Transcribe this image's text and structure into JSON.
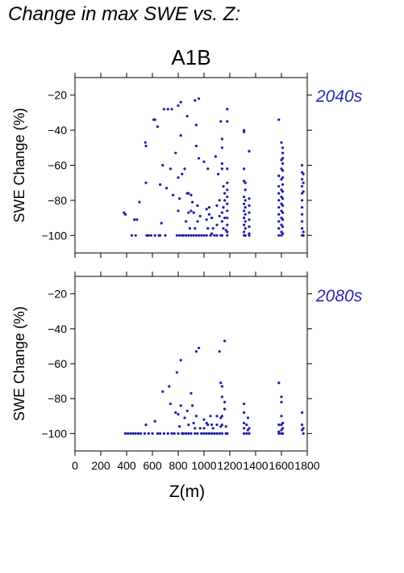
{
  "figure": {
    "title": "Change in max SWE vs. Z:",
    "scenario": "A1B",
    "point_color": "#1c1ca8",
    "label_color": "#2828b4"
  },
  "chart_data": [
    {
      "type": "scatter",
      "period_label": "2040s",
      "ylabel": "SWE Change (%)",
      "xlabel": "",
      "xlim": [
        0,
        1800
      ],
      "ylim": [
        -110,
        -10
      ],
      "yticks": [
        -20,
        -40,
        -60,
        -80,
        -100
      ],
      "xticks": [
        0,
        200,
        400,
        600,
        800,
        1000,
        1200,
        1400,
        1600,
        1800
      ],
      "show_x_tick_labels": false,
      "grid": false,
      "points": [
        [
          380,
          -87
        ],
        [
          390,
          -88
        ],
        [
          440,
          -100
        ],
        [
          460,
          -91
        ],
        [
          470,
          -100
        ],
        [
          480,
          -91
        ],
        [
          500,
          -81
        ],
        [
          545,
          -47
        ],
        [
          550,
          -49
        ],
        [
          550,
          -70
        ],
        [
          555,
          -100
        ],
        [
          570,
          -100
        ],
        [
          590,
          -100
        ],
        [
          610,
          -34
        ],
        [
          620,
          -34
        ],
        [
          620,
          -100
        ],
        [
          640,
          -38
        ],
        [
          650,
          -100
        ],
        [
          660,
          -71
        ],
        [
          660,
          -100
        ],
        [
          670,
          -93
        ],
        [
          680,
          -60
        ],
        [
          690,
          -28
        ],
        [
          700,
          -100
        ],
        [
          710,
          -73
        ],
        [
          720,
          -28
        ],
        [
          740,
          -62
        ],
        [
          750,
          -28
        ],
        [
          760,
          -77
        ],
        [
          780,
          -53
        ],
        [
          790,
          -100
        ],
        [
          800,
          -26
        ],
        [
          800,
          -67
        ],
        [
          800,
          -86
        ],
        [
          810,
          -79
        ],
        [
          810,
          -100
        ],
        [
          820,
          -24
        ],
        [
          820,
          -43
        ],
        [
          830,
          -65
        ],
        [
          830,
          -100
        ],
        [
          840,
          -100
        ],
        [
          850,
          -62
        ],
        [
          860,
          -92
        ],
        [
          860,
          -100
        ],
        [
          870,
          -32
        ],
        [
          870,
          -76
        ],
        [
          880,
          -76
        ],
        [
          880,
          -87
        ],
        [
          880,
          -100
        ],
        [
          890,
          -96
        ],
        [
          900,
          -77
        ],
        [
          900,
          -86
        ],
        [
          900,
          -100
        ],
        [
          910,
          -81
        ],
        [
          920,
          -87
        ],
        [
          920,
          -100
        ],
        [
          930,
          -23
        ],
        [
          930,
          -96
        ],
        [
          940,
          -37
        ],
        [
          940,
          -49
        ],
        [
          940,
          -100
        ],
        [
          950,
          -83
        ],
        [
          950,
          -92
        ],
        [
          960,
          -22
        ],
        [
          960,
          -56
        ],
        [
          960,
          -100
        ],
        [
          970,
          -89
        ],
        [
          980,
          -100
        ],
        [
          1000,
          -58
        ],
        [
          1000,
          -100
        ],
        [
          1020,
          -85
        ],
        [
          1020,
          -91
        ],
        [
          1020,
          -100
        ],
        [
          1030,
          -62
        ],
        [
          1030,
          -96
        ],
        [
          1040,
          -84
        ],
        [
          1040,
          -88
        ],
        [
          1050,
          -100
        ],
        [
          1060,
          -90
        ],
        [
          1060,
          -99
        ],
        [
          1070,
          -96
        ],
        [
          1080,
          -100
        ],
        [
          1090,
          -55
        ],
        [
          1100,
          -83
        ],
        [
          1100,
          -94
        ],
        [
          1100,
          -100
        ],
        [
          1110,
          -65
        ],
        [
          1120,
          -80
        ],
        [
          1120,
          -89
        ],
        [
          1130,
          -35
        ],
        [
          1130,
          -100
        ],
        [
          1140,
          -45
        ],
        [
          1140,
          -50
        ],
        [
          1140,
          -59
        ],
        [
          1140,
          -62
        ],
        [
          1140,
          -87
        ],
        [
          1140,
          -92
        ],
        [
          1140,
          -100
        ],
        [
          1150,
          -72
        ],
        [
          1150,
          -84
        ],
        [
          1150,
          -96
        ],
        [
          1160,
          -76
        ],
        [
          1160,
          -80
        ],
        [
          1160,
          -90
        ],
        [
          1170,
          -97
        ],
        [
          1180,
          -28
        ],
        [
          1180,
          -35
        ],
        [
          1180,
          -62
        ],
        [
          1180,
          -70
        ],
        [
          1180,
          -74
        ],
        [
          1180,
          -78
        ],
        [
          1180,
          -82
        ],
        [
          1180,
          -86
        ],
        [
          1180,
          -90
        ],
        [
          1180,
          -94
        ],
        [
          1180,
          -98
        ],
        [
          1180,
          -100
        ],
        [
          1310,
          -40
        ],
        [
          1310,
          -41
        ],
        [
          1310,
          -62
        ],
        [
          1310,
          -69
        ],
        [
          1310,
          -78
        ],
        [
          1310,
          -82
        ],
        [
          1310,
          -86
        ],
        [
          1310,
          -90
        ],
        [
          1310,
          -94
        ],
        [
          1310,
          -98
        ],
        [
          1310,
          -100
        ],
        [
          1320,
          -70
        ],
        [
          1320,
          -74
        ],
        [
          1320,
          -80
        ],
        [
          1320,
          -84
        ],
        [
          1320,
          -88
        ],
        [
          1320,
          -92
        ],
        [
          1320,
          -96
        ],
        [
          1320,
          -100
        ],
        [
          1350,
          -52
        ],
        [
          1350,
          -79
        ],
        [
          1350,
          -83
        ],
        [
          1350,
          -87
        ],
        [
          1350,
          -91
        ],
        [
          1350,
          -95
        ],
        [
          1350,
          -99
        ],
        [
          1350,
          -100
        ],
        [
          1580,
          -34
        ],
        [
          1580,
          -66
        ],
        [
          1580,
          -72
        ],
        [
          1580,
          -76
        ],
        [
          1580,
          -80
        ],
        [
          1580,
          -84
        ],
        [
          1580,
          -88
        ],
        [
          1580,
          -92
        ],
        [
          1580,
          -96
        ],
        [
          1580,
          -100
        ],
        [
          1600,
          -47
        ],
        [
          1600,
          -57
        ],
        [
          1600,
          -62
        ],
        [
          1600,
          -68
        ],
        [
          1600,
          -74
        ],
        [
          1600,
          -78
        ],
        [
          1600,
          -82
        ],
        [
          1600,
          -86
        ],
        [
          1600,
          -90
        ],
        [
          1600,
          -94
        ],
        [
          1600,
          -98
        ],
        [
          1600,
          -100
        ],
        [
          1610,
          -50
        ],
        [
          1610,
          -53
        ],
        [
          1610,
          -56
        ],
        [
          1610,
          -59
        ],
        [
          1610,
          -63
        ],
        [
          1610,
          -67
        ],
        [
          1610,
          -71
        ],
        [
          1610,
          -75
        ],
        [
          1610,
          -79
        ],
        [
          1610,
          -83
        ],
        [
          1610,
          -87
        ],
        [
          1610,
          -91
        ],
        [
          1610,
          -95
        ],
        [
          1610,
          -99
        ],
        [
          1760,
          -60
        ],
        [
          1760,
          -64
        ],
        [
          1760,
          -68
        ],
        [
          1760,
          -72
        ],
        [
          1760,
          -76
        ],
        [
          1760,
          -80
        ],
        [
          1760,
          -84
        ],
        [
          1760,
          -88
        ],
        [
          1760,
          -92
        ],
        [
          1760,
          -96
        ],
        [
          1760,
          -100
        ],
        [
          1770,
          -65
        ],
        [
          1770,
          -70
        ],
        [
          1770,
          -75
        ],
        [
          1770,
          -98
        ],
        [
          1770,
          -100
        ]
      ]
    },
    {
      "type": "scatter",
      "period_label": "2080s",
      "ylabel": "SWE Change (%)",
      "xlabel": "Z(m)",
      "xlim": [
        0,
        1800
      ],
      "ylim": [
        -110,
        -10
      ],
      "yticks": [
        -20,
        -40,
        -60,
        -80,
        -100
      ],
      "xticks": [
        0,
        200,
        400,
        600,
        800,
        1000,
        1200,
        1400,
        1600,
        1800
      ],
      "xticklabels": [
        "0",
        "200",
        "400",
        "600",
        "800",
        "1000",
        "1200",
        "1400",
        "1600",
        "1800"
      ],
      "show_x_tick_labels": true,
      "grid": false,
      "points": [
        [
          390,
          -100
        ],
        [
          410,
          -100
        ],
        [
          430,
          -100
        ],
        [
          450,
          -100
        ],
        [
          470,
          -100
        ],
        [
          490,
          -100
        ],
        [
          510,
          -100
        ],
        [
          540,
          -100
        ],
        [
          550,
          -95
        ],
        [
          570,
          -100
        ],
        [
          600,
          -100
        ],
        [
          620,
          -93
        ],
        [
          640,
          -100
        ],
        [
          660,
          -100
        ],
        [
          680,
          -76
        ],
        [
          690,
          -100
        ],
        [
          720,
          -100
        ],
        [
          730,
          -73
        ],
        [
          740,
          -83
        ],
        [
          750,
          -100
        ],
        [
          770,
          -100
        ],
        [
          780,
          -88
        ],
        [
          790,
          -65
        ],
        [
          800,
          -89
        ],
        [
          800,
          -100
        ],
        [
          810,
          -96
        ],
        [
          820,
          -58
        ],
        [
          820,
          -84
        ],
        [
          830,
          -100
        ],
        [
          840,
          -100
        ],
        [
          850,
          -91
        ],
        [
          860,
          -100
        ],
        [
          870,
          -87
        ],
        [
          880,
          -95
        ],
        [
          880,
          -100
        ],
        [
          900,
          -77
        ],
        [
          900,
          -100
        ],
        [
          910,
          -84
        ],
        [
          920,
          -94
        ],
        [
          930,
          -97
        ],
        [
          930,
          -100
        ],
        [
          940,
          -53
        ],
        [
          940,
          -90
        ],
        [
          950,
          -100
        ],
        [
          960,
          -51
        ],
        [
          970,
          -97
        ],
        [
          980,
          -100
        ],
        [
          1000,
          -92
        ],
        [
          1000,
          -97
        ],
        [
          1000,
          -100
        ],
        [
          1020,
          -94
        ],
        [
          1020,
          -100
        ],
        [
          1030,
          -95
        ],
        [
          1040,
          -100
        ],
        [
          1050,
          -90
        ],
        [
          1060,
          -95
        ],
        [
          1060,
          -100
        ],
        [
          1070,
          -97
        ],
        [
          1080,
          -100
        ],
        [
          1100,
          -90
        ],
        [
          1100,
          -95
        ],
        [
          1100,
          -100
        ],
        [
          1120,
          -53
        ],
        [
          1120,
          -100
        ],
        [
          1130,
          -71
        ],
        [
          1130,
          -91
        ],
        [
          1130,
          -96
        ],
        [
          1140,
          -73
        ],
        [
          1140,
          -79
        ],
        [
          1140,
          -90
        ],
        [
          1140,
          -95
        ],
        [
          1140,
          -100
        ],
        [
          1160,
          -47
        ],
        [
          1160,
          -82
        ],
        [
          1160,
          -86
        ],
        [
          1170,
          -96
        ],
        [
          1170,
          -100
        ],
        [
          1180,
          -100
        ],
        [
          1310,
          -83
        ],
        [
          1310,
          -88
        ],
        [
          1310,
          -94
        ],
        [
          1310,
          -97
        ],
        [
          1310,
          -100
        ],
        [
          1330,
          -95
        ],
        [
          1330,
          -100
        ],
        [
          1340,
          -91
        ],
        [
          1340,
          -98
        ],
        [
          1350,
          -97
        ],
        [
          1350,
          -100
        ],
        [
          1580,
          -71
        ],
        [
          1580,
          -95
        ],
        [
          1580,
          -99
        ],
        [
          1580,
          -100
        ],
        [
          1600,
          -79
        ],
        [
          1600,
          -82
        ],
        [
          1600,
          -90
        ],
        [
          1600,
          -95
        ],
        [
          1600,
          -98
        ],
        [
          1600,
          -100
        ],
        [
          1610,
          -94
        ],
        [
          1610,
          -97
        ],
        [
          1610,
          -100
        ],
        [
          1760,
          -88
        ],
        [
          1760,
          -95
        ],
        [
          1760,
          -98
        ],
        [
          1770,
          -97
        ],
        [
          1770,
          -100
        ]
      ]
    }
  ]
}
